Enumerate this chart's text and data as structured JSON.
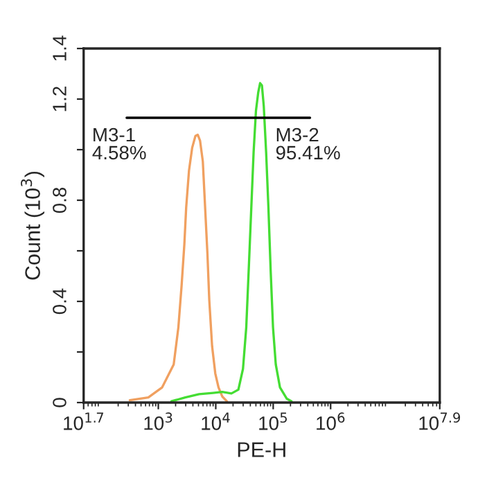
{
  "chart_data": {
    "type": "line",
    "xlabel": "PE-H",
    "ylabel": "Count (10$^{3}$)",
    "log": "x",
    "grid": false,
    "legend": false,
    "xlim": [
      50.12,
      79430000
    ],
    "ylim": [
      0,
      1.4
    ],
    "xticks": [
      {
        "value": 50.12,
        "label": "10$^{1.7}$"
      },
      {
        "value": 1000,
        "label": "10$^{3}$"
      },
      {
        "value": 10000,
        "label": "10$^{4}$"
      },
      {
        "value": 100000,
        "label": "10$^{5}$"
      },
      {
        "value": 1000000,
        "label": "10$^{6}$"
      },
      {
        "value": 79430000,
        "label": "10$^{7.9}$"
      }
    ],
    "yticks": [
      0,
      {
        "value": 0.2,
        "label": null
      },
      0.4,
      {
        "value": 0.6,
        "label": null
      },
      0.8,
      {
        "value": 1.0,
        "label": null
      },
      1.2,
      1.4
    ],
    "series": [
      {
        "color": "#f0a060",
        "x": [
          319,
          670,
          1167,
          1854,
          2234,
          2541,
          2838,
          3055,
          3420,
          3890,
          4426,
          4853,
          5333,
          5957,
          6412,
          7161,
          7709,
          8630,
          9817,
          11170,
          12970,
          15600
        ],
        "values": [
          0.009,
          0.02,
          0.06,
          0.151,
          0.297,
          0.461,
          0.625,
          0.771,
          0.917,
          1.008,
          1.054,
          1.059,
          1.035,
          0.953,
          0.807,
          0.589,
          0.406,
          0.224,
          0.115,
          0.06,
          0.024,
          0.005
        ]
      },
      {
        "color": "#44dd33",
        "x": [
          1690,
          2944,
          5129,
          8954,
          12970,
          18750,
          24770,
          29790,
          33960,
          37930,
          41590,
          45610,
          50120,
          54950,
          59160,
          63680,
          68550,
          75340,
          82600,
          90570,
          99310,
          110900,
          131200,
          173000,
          208400
        ],
        "values": [
          0.005,
          0.02,
          0.033,
          0.038,
          0.042,
          0.036,
          0.051,
          0.133,
          0.297,
          0.552,
          0.771,
          0.99,
          1.154,
          1.227,
          1.263,
          1.254,
          1.172,
          0.99,
          0.771,
          0.516,
          0.297,
          0.151,
          0.06,
          0.015,
          0.005
        ]
      },
      {
        "color": "#000000",
        "x": [
          281,
          13710,
          437500
        ],
        "values": [
          1.126,
          1.126,
          1.126
        ]
      }
    ],
    "annotations": [
      {
        "text": "M3-1\n4.58%",
        "x": 281,
        "y": 1.126
      },
      {
        "text": "M3-2\n95.41%",
        "x": 437500,
        "y": 1.126
      }
    ]
  }
}
